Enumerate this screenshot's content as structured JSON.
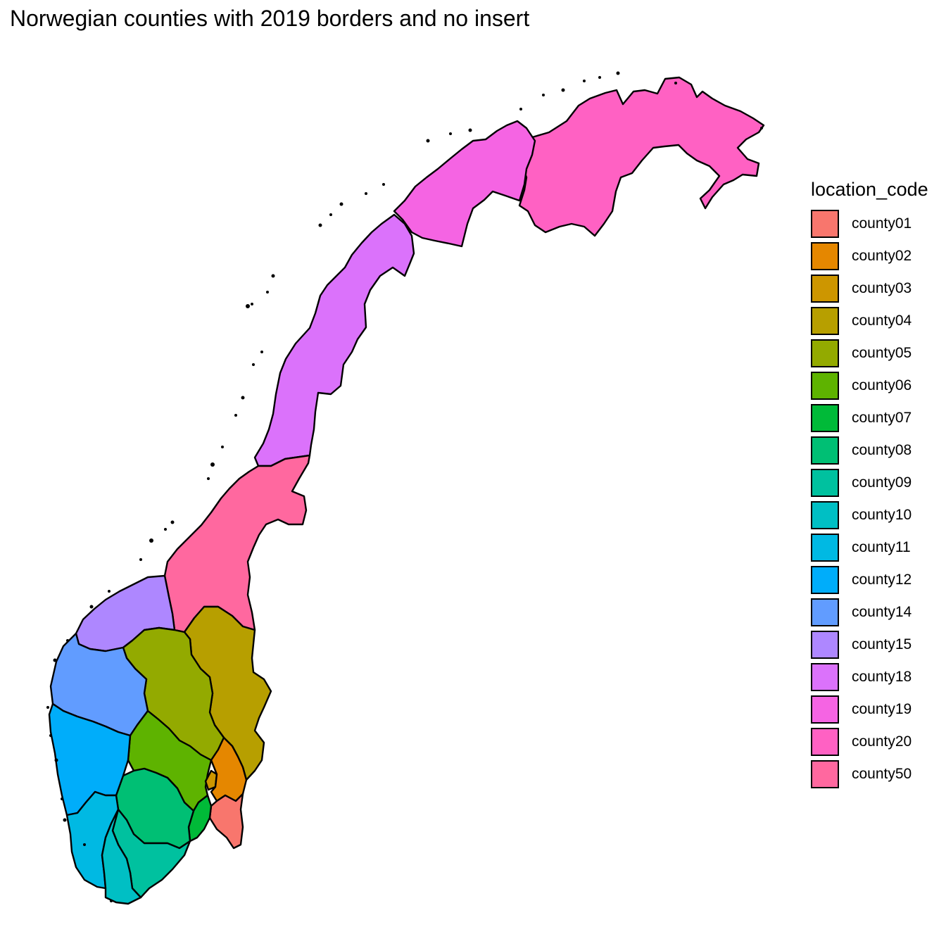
{
  "title": "Norwegian counties with 2019 borders and no insert",
  "legend": {
    "title": "location_code",
    "position": "right",
    "items": [
      {
        "code": "county01",
        "label": "county01",
        "color": "#F8766D"
      },
      {
        "code": "county02",
        "label": "county02",
        "color": "#E58700"
      },
      {
        "code": "county03",
        "label": "county03",
        "color": "#CD9600"
      },
      {
        "code": "county04",
        "label": "county04",
        "color": "#B79F00"
      },
      {
        "code": "county05",
        "label": "county05",
        "color": "#93AA00"
      },
      {
        "code": "county06",
        "label": "county06",
        "color": "#5EB300"
      },
      {
        "code": "county07",
        "label": "county07",
        "color": "#00BA38"
      },
      {
        "code": "county08",
        "label": "county08",
        "color": "#00BF74"
      },
      {
        "code": "county09",
        "label": "county09",
        "color": "#00C19F"
      },
      {
        "code": "county10",
        "label": "county10",
        "color": "#00BFC4"
      },
      {
        "code": "county11",
        "label": "county11",
        "color": "#00B9E3"
      },
      {
        "code": "county12",
        "label": "county12",
        "color": "#00ADFA"
      },
      {
        "code": "county14",
        "label": "county14",
        "color": "#619CFF"
      },
      {
        "code": "county15",
        "label": "county15",
        "color": "#AE87FF"
      },
      {
        "code": "county18",
        "label": "county18",
        "color": "#DB72FB"
      },
      {
        "code": "county19",
        "label": "county19",
        "color": "#F564E3"
      },
      {
        "code": "county20",
        "label": "county20",
        "color": "#FF61C3"
      },
      {
        "code": "county50",
        "label": "county50",
        "color": "#FF689F"
      }
    ]
  },
  "map": {
    "regions": [
      "county01",
      "county02",
      "county03",
      "county04",
      "county05",
      "county06",
      "county07",
      "county08",
      "county09",
      "county10",
      "county11",
      "county12",
      "county14",
      "county15",
      "county18",
      "county19",
      "county20",
      "county50"
    ],
    "stroke_color": "#000000"
  }
}
